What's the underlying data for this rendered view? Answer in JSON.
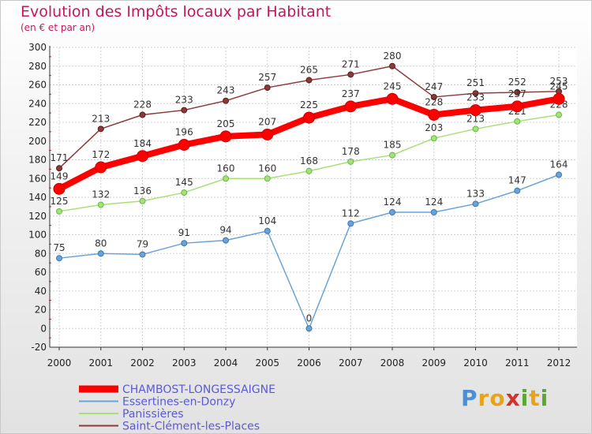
{
  "title": "Evolution des Impôts locaux par Habitant",
  "subtitle": "(en € et par an)",
  "logo": {
    "text": "Proxiti",
    "letters": [
      "P",
      "r",
      "o",
      "x",
      "i",
      "t",
      "i"
    ],
    "colors": [
      "#4a90d9",
      "#e8a317",
      "#e8a317",
      "#d0342c",
      "#5aa832",
      "#e8a317",
      "#5aa832"
    ]
  },
  "chart_data": {
    "type": "line",
    "title": "Evolution des Impôts locaux par Habitant",
    "subtitle": "(en € et par an)",
    "xlabel": "",
    "ylabel": "",
    "categories": [
      "2000",
      "2001",
      "2002",
      "2003",
      "2004",
      "2005",
      "2006",
      "2007",
      "2008",
      "2009",
      "2010",
      "2011",
      "2012"
    ],
    "yticks": [
      "-20",
      "0",
      "20",
      "40",
      "60",
      "80",
      "100",
      "120",
      "140",
      "160",
      "180",
      "200",
      "220",
      "240",
      "260",
      "280",
      "300"
    ],
    "ylim": [
      -20,
      300
    ],
    "grid": true,
    "legend_position": "bottom-left",
    "series": [
      {
        "name": "CHAMBOST-LONGESSAIGNE",
        "color": "#ff0000",
        "stroke_color": "#cc0000",
        "label_color": "#333333",
        "values": [
          149,
          172,
          184,
          196,
          205,
          207,
          225,
          237,
          245,
          228,
          233,
          237,
          245
        ],
        "labels": [
          "149",
          "172",
          "184",
          "196",
          "205",
          "207",
          "225",
          "237",
          "245",
          "228",
          "233",
          "237",
          "245"
        ]
      },
      {
        "name": "Essertines-en-Donzy",
        "color": "#6aa3d5",
        "stroke_color": "#3a77b8",
        "label_color": "#333333",
        "values": [
          75,
          80,
          79,
          91,
          94,
          104,
          0,
          112,
          124,
          124,
          133,
          147,
          164
        ],
        "labels": [
          "75",
          "80",
          "79",
          "91",
          "94",
          "104",
          "0",
          "112",
          "124",
          "124",
          "133",
          "147",
          "164"
        ]
      },
      {
        "name": "Panissières",
        "color": "#a7e07a",
        "stroke_color": "#66bb44",
        "label_color": "#333333",
        "values": [
          125,
          132,
          136,
          145,
          160,
          160,
          168,
          178,
          185,
          203,
          213,
          221,
          228
        ],
        "labels": [
          "125",
          "132",
          "136",
          "145",
          "160",
          "160",
          "168",
          "178",
          "185",
          "203",
          "213",
          "221",
          "228"
        ]
      },
      {
        "name": "Saint-Clément-les-Places",
        "color": "#8b3a3a",
        "stroke_color": "#5a1e1e",
        "label_color": "#333333",
        "values": [
          171,
          213,
          228,
          233,
          243,
          257,
          265,
          271,
          280,
          247,
          251,
          252,
          253
        ],
        "labels": [
          "171",
          "213",
          "228",
          "233",
          "243",
          "257",
          "265",
          "271",
          "280",
          "247",
          "251",
          "252",
          "253"
        ]
      }
    ]
  }
}
